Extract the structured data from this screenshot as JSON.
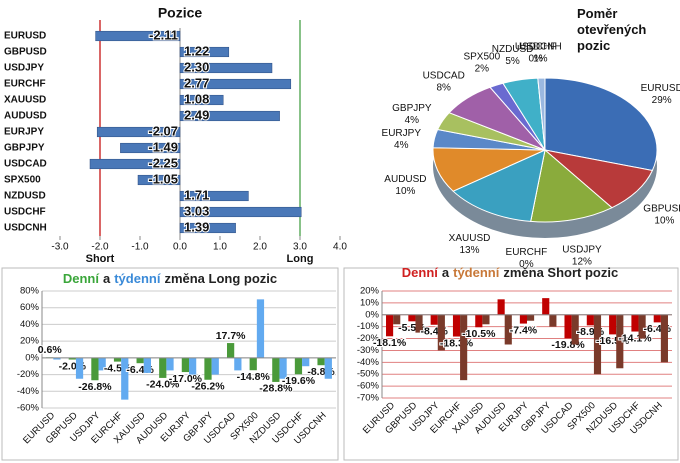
{
  "chart_data": [
    {
      "type": "hbar",
      "title": "Pozice",
      "categories": [
        "EURUSD",
        "GBPUSD",
        "USDJPY",
        "EURCHF",
        "XAUUSD",
        "AUDUSD",
        "EURJPY",
        "GBPJPY",
        "USDCAD",
        "SPX500",
        "NZDUSD",
        "USDCHF",
        "USDCNH"
      ],
      "values": [
        -2.11,
        1.22,
        2.3,
        2.77,
        1.08,
        2.49,
        -2.07,
        -1.49,
        -2.25,
        -1.05,
        1.71,
        3.03,
        1.39
      ],
      "value_labels": [
        "-2.11",
        "1.22",
        "2.30",
        "2.77",
        "1.08",
        "2.49",
        "-2.07",
        "-1.49",
        "-2.25",
        "-1.05",
        "1.71",
        "3.03",
        "1.39"
      ],
      "color": "#4a78b8",
      "xlim": [
        -3,
        4
      ],
      "xticks": [
        {
          "value": -3,
          "label": "-3.0"
        },
        {
          "value": -2,
          "label": "-2.0"
        },
        {
          "value": -1,
          "label": "-1.0"
        },
        {
          "value": 0,
          "label": "0.0"
        },
        {
          "value": 1,
          "label": "1.0"
        },
        {
          "value": 2,
          "label": "2.0"
        },
        {
          "value": 3,
          "label": "3.0"
        },
        {
          "value": 4,
          "label": "4.0"
        }
      ],
      "reference_lines": [
        {
          "value": -2,
          "label": "Short",
          "color": "#c00000"
        },
        {
          "value": 3,
          "label": "Long",
          "color": "#3a9a3a"
        }
      ]
    },
    {
      "type": "pie",
      "title": "Poměr otevřených pozic",
      "categories": [
        "EURUSD",
        "GBPUSD",
        "USDJPY",
        "EURCHF",
        "XAUUSD",
        "AUDUSD",
        "EURJPY",
        "GBPJPY",
        "USDCAD",
        "SPX500",
        "NZDUSD",
        "USDCHF",
        "USDCNH"
      ],
      "values": [
        29,
        10,
        12,
        0,
        13,
        10,
        4,
        4,
        8,
        2,
        5,
        0,
        1
      ],
      "value_labels": [
        "29%",
        "10%",
        "12%",
        "0%",
        "13%",
        "10%",
        "4%",
        "4%",
        "8%",
        "2%",
        "5%",
        "0%",
        "1%"
      ],
      "colors": [
        "#3b6db5",
        "#b83a3a",
        "#8aab3c",
        "#6a4a9a",
        "#3aa0c0",
        "#e08a2a",
        "#5a88c8",
        "#a8c060",
        "#a060a8",
        "#6a6ad0",
        "#40b0c8",
        "#e0a060",
        "#9ab8e0"
      ]
    },
    {
      "type": "grouped_bar",
      "title": [
        {
          "text": "Denní",
          "color": "#3aa63a"
        },
        {
          "text": "a",
          "color": "#222222"
        },
        {
          "text": "týdenní",
          "color": "#3a8ad8"
        },
        {
          "text": "změna Long pozic",
          "color": "#222222"
        }
      ],
      "categories": [
        "EURUSD",
        "GBPUSD",
        "USDJPY",
        "EURCHF",
        "XAUUSD",
        "AUDUSD",
        "EURJPY",
        "GBPJPY",
        "USDCAD",
        "SPX500",
        "NZDUSD",
        "USDCHF",
        "USDCNH"
      ],
      "series": [
        {
          "name": "Denní",
          "color": "#4a9a3a",
          "values": [
            0.6,
            -2.0,
            -26.8,
            -4.5,
            -6.4,
            -24.0,
            -17.0,
            -26.2,
            17.7,
            -14.8,
            -28.8,
            -19.6,
            -8.8
          ],
          "value_labels": [
            "0.6%",
            "-2.0%",
            "-26.8%",
            "-4.5%",
            "-6.4%",
            "-24.0%",
            "-17.0%",
            "-26.2%",
            "17.7%",
            "-14.8%",
            "-28.8%",
            "-19.6%",
            "-8.8%"
          ]
        },
        {
          "name": "týdenní",
          "color": "#62aaf0",
          "values": [
            -2,
            -25,
            -15,
            -50,
            -18,
            -15,
            -20,
            -20,
            -15,
            70,
            -25,
            -10,
            -25
          ]
        }
      ],
      "ylim": [
        -60,
        80
      ],
      "yticks": [
        {
          "value": -60,
          "label": "-60%"
        },
        {
          "value": -40,
          "label": "-40%"
        },
        {
          "value": -20,
          "label": "-20%"
        },
        {
          "value": 0,
          "label": "0%"
        },
        {
          "value": 20,
          "label": "20%"
        },
        {
          "value": 40,
          "label": "40%"
        },
        {
          "value": 60,
          "label": "60%"
        },
        {
          "value": 80,
          "label": "80%"
        }
      ],
      "grid": true,
      "grid_color": "#cccccc"
    },
    {
      "type": "grouped_bar",
      "title": [
        {
          "text": "Denní",
          "color": "#d02020"
        },
        {
          "text": "a",
          "color": "#222222"
        },
        {
          "text": "týdenní",
          "color": "#c87838"
        },
        {
          "text": "změna Short pozic",
          "color": "#222222"
        }
      ],
      "categories": [
        "EURUSD",
        "GBPUSD",
        "USDJPY",
        "EURCHF",
        "XAUUSD",
        "AUDUSD",
        "EURJPY",
        "GBPJPY",
        "USDCAD",
        "SPX500",
        "NZDUSD",
        "USDCHF",
        "USDCNH"
      ],
      "series": [
        {
          "name": "Denní",
          "color": "#c00000",
          "values": [
            -18.1,
            -5.5,
            -8.4,
            -18.3,
            -10.5,
            13,
            -7.4,
            14,
            -19.8,
            -8.9,
            -16.5,
            -14.1,
            -6.4
          ],
          "value_labels": [
            "-18.1%",
            "-5.5%",
            "-8.4%",
            "-18.3%",
            "-10.5%",
            null,
            "-7.4%",
            null,
            "-19.8%",
            "-8.9%",
            "-16.5%",
            "-14.1%",
            "-6.4%"
          ]
        },
        {
          "name": "týdenní",
          "color": "#7a3a2a",
          "values": [
            -8,
            -15,
            -30,
            -55,
            -8,
            -25,
            -5,
            -10,
            -25,
            -50,
            -45,
            -20,
            -40
          ]
        }
      ],
      "ylim": [
        -70,
        20
      ],
      "yticks": [
        {
          "value": -70,
          "label": "-70%"
        },
        {
          "value": -60,
          "label": "-60%"
        },
        {
          "value": -50,
          "label": "-50%"
        },
        {
          "value": -40,
          "label": "-40%"
        },
        {
          "value": -30,
          "label": "-30%"
        },
        {
          "value": -20,
          "label": "-20%"
        },
        {
          "value": -10,
          "label": "-10%"
        },
        {
          "value": 0,
          "label": "0%"
        },
        {
          "value": 10,
          "label": "10%"
        },
        {
          "value": 20,
          "label": "20%"
        }
      ],
      "grid": true,
      "grid_color": "#e08080"
    }
  ]
}
